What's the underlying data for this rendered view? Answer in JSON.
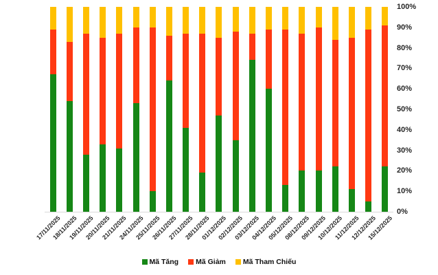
{
  "chart_data": {
    "type": "bar",
    "stacked": true,
    "stacking": "percent",
    "title": "",
    "xlabel": "",
    "ylabel": "",
    "ylim": [
      0,
      100
    ],
    "grid": false,
    "legend_position": "bottom",
    "y_axis_side": "right",
    "y_ticks": [
      "0%",
      "10%",
      "20%",
      "30%",
      "40%",
      "50%",
      "60%",
      "70%",
      "80%",
      "90%",
      "100%"
    ],
    "categories": [
      "17/11/2025",
      "18/11/2025",
      "19/11/2025",
      "20/11/2025",
      "21/11/2025",
      "24/11/2025",
      "25/11/2025",
      "26/11/2025",
      "27/11/2025",
      "28/11/2025",
      "01/12/2025",
      "02/12/2025",
      "03/12/2025",
      "04/12/2025",
      "05/12/2025",
      "08/12/2025",
      "09/12/2025",
      "10/12/2025",
      "11/12/2025",
      "12/12/2025",
      "15/12/2025"
    ],
    "series": [
      {
        "name": "Mã Tăng",
        "color": "#168716",
        "values": [
          67,
          54,
          28,
          33,
          31,
          53,
          10,
          64,
          41,
          19,
          47,
          35,
          74,
          60,
          13,
          20,
          20,
          22,
          11,
          5,
          22
        ]
      },
      {
        "name": "Mã Giảm",
        "color": "#FF3912",
        "values": [
          22,
          29,
          59,
          52,
          56,
          37,
          80,
          22,
          46,
          68,
          38,
          53,
          13,
          29,
          76,
          67,
          70,
          62,
          74,
          84,
          69
        ]
      },
      {
        "name": "Mã Tham Chiếu",
        "color": "#FFC000",
        "values": [
          11,
          17,
          13,
          15,
          13,
          10,
          10,
          14,
          13,
          13,
          15,
          12,
          13,
          11,
          11,
          13,
          10,
          16,
          15,
          11,
          9
        ]
      }
    ]
  },
  "colors": {
    "axis_text": "#262626",
    "baseline": "#d9d9d9",
    "background": "#ffffff"
  }
}
